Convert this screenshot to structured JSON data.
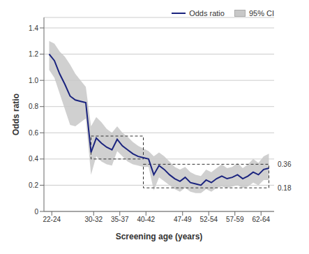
{
  "chart_data": {
    "type": "line",
    "title": "",
    "xlabel": "Screening age (years)",
    "ylabel": "Odds ratio",
    "x": [
      22,
      23,
      24,
      25,
      26,
      27,
      28,
      29,
      30,
      31,
      32,
      33,
      34,
      35,
      36,
      37,
      38,
      39,
      40,
      41,
      42,
      43,
      44,
      45,
      46,
      47,
      48,
      49,
      50,
      51,
      52,
      53,
      54,
      55,
      56,
      57,
      58,
      59,
      60,
      61,
      62,
      63,
      64
    ],
    "series": [
      {
        "name": "Odds ratio",
        "type": "line",
        "color": "#1a237e",
        "values": [
          1.2,
          1.15,
          1.05,
          0.97,
          0.88,
          0.85,
          0.84,
          0.83,
          0.45,
          0.56,
          0.52,
          0.49,
          0.47,
          0.55,
          0.5,
          0.47,
          0.44,
          0.42,
          0.41,
          0.4,
          0.28,
          0.35,
          0.32,
          0.28,
          0.25,
          0.23,
          0.26,
          0.22,
          0.21,
          0.2,
          0.24,
          0.22,
          0.25,
          0.27,
          0.25,
          0.26,
          0.28,
          0.25,
          0.27,
          0.3,
          0.28,
          0.32,
          0.33
        ]
      },
      {
        "name": "95% CI",
        "type": "area",
        "color": "#c8c8c8",
        "upper": [
          1.3,
          1.28,
          1.22,
          1.18,
          1.12,
          1.05,
          1.0,
          0.95,
          0.65,
          0.72,
          0.68,
          0.63,
          0.6,
          0.65,
          0.6,
          0.57,
          0.53,
          0.5,
          0.48,
          0.46,
          0.42,
          0.45,
          0.42,
          0.38,
          0.34,
          0.32,
          0.34,
          0.3,
          0.28,
          0.27,
          0.32,
          0.3,
          0.33,
          0.36,
          0.33,
          0.34,
          0.37,
          0.33,
          0.36,
          0.4,
          0.37,
          0.42,
          0.44
        ],
        "lower": [
          1.08,
          1.02,
          0.9,
          0.78,
          0.66,
          0.65,
          0.68,
          0.71,
          0.28,
          0.42,
          0.38,
          0.36,
          0.35,
          0.46,
          0.42,
          0.38,
          0.36,
          0.35,
          0.34,
          0.34,
          0.16,
          0.26,
          0.23,
          0.2,
          0.17,
          0.15,
          0.18,
          0.15,
          0.14,
          0.14,
          0.17,
          0.15,
          0.18,
          0.19,
          0.18,
          0.19,
          0.2,
          0.18,
          0.19,
          0.22,
          0.2,
          0.24,
          0.24
        ]
      }
    ],
    "xlim": [
      21,
      65
    ],
    "xticks": [
      {
        "value": 22.5,
        "label": "22-24"
      },
      {
        "value": 30.5,
        "label": "30-32"
      },
      {
        "value": 35.5,
        "label": "35-37"
      },
      {
        "value": 40.5,
        "label": "40-42"
      },
      {
        "value": 47.5,
        "label": "47-49"
      },
      {
        "value": 52.5,
        "label": "52-54"
      },
      {
        "value": 57.5,
        "label": "57-59"
      },
      {
        "value": 62.5,
        "label": "62-64"
      }
    ],
    "ylim": [
      0,
      1.48
    ],
    "yticks": [
      0,
      0.2,
      0.4,
      0.6,
      {
        "value": 0.8,
        "label": "0.8"
      },
      {
        "value": 1.0,
        "label": "1.0"
      },
      1.2,
      1.4
    ],
    "grid": true,
    "legend": "upper right",
    "boxes": [
      {
        "x1": 30,
        "x2": 40,
        "y1": 0.4,
        "y2": 0.575
      },
      {
        "x1": 40,
        "x2": 64,
        "y1": 0.18,
        "y2": 0.36
      }
    ],
    "ref_labels": [
      {
        "value": 0.36,
        "label": "0.36"
      },
      {
        "value": 0.18,
        "label": "0.18"
      }
    ]
  }
}
